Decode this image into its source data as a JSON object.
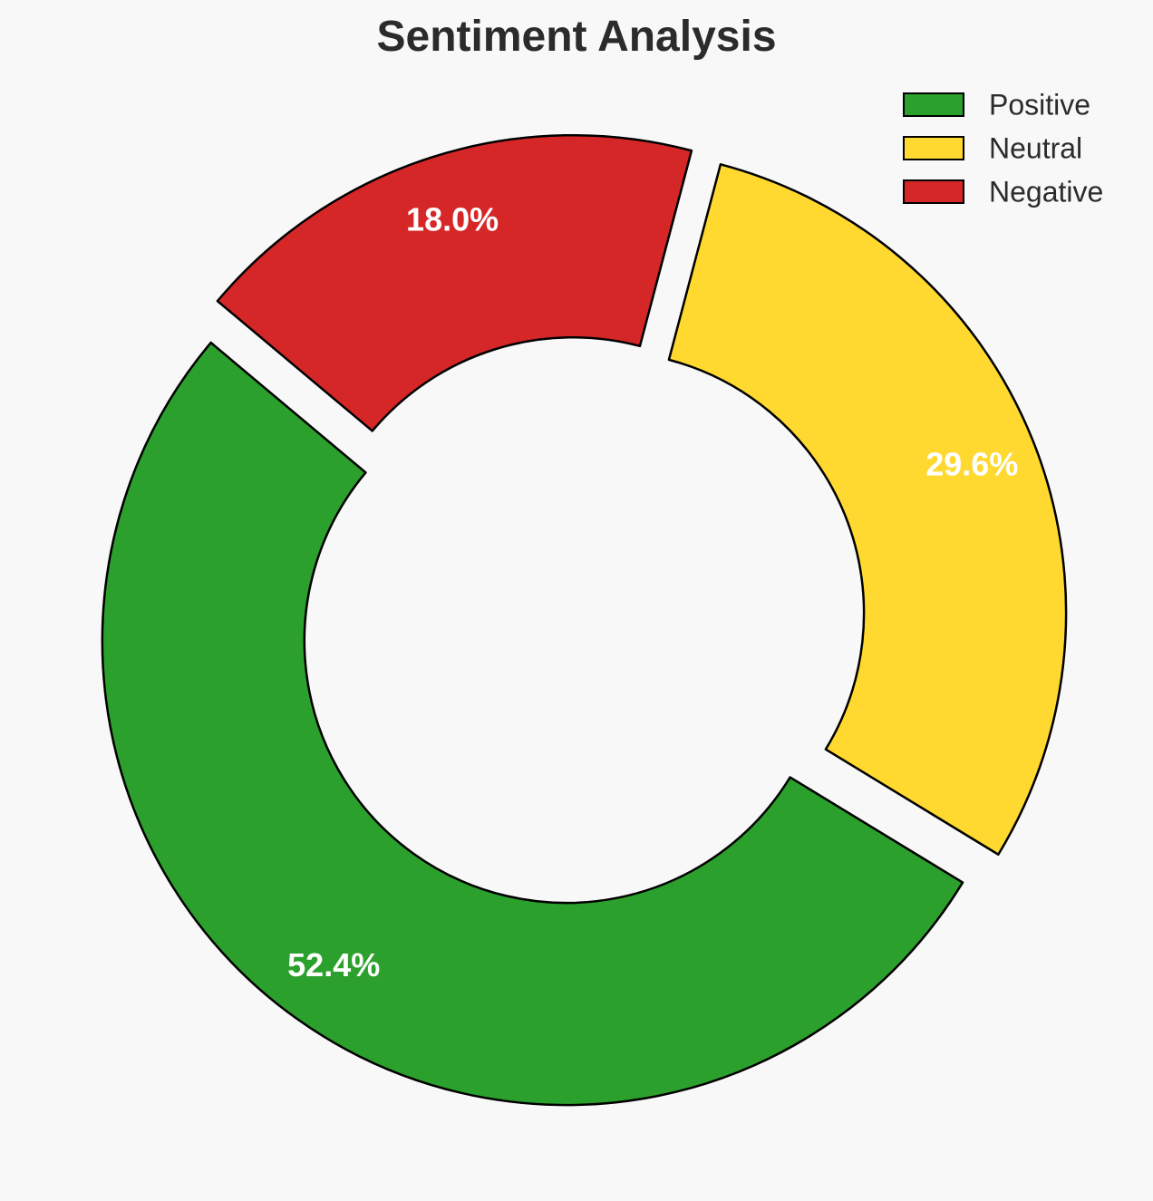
{
  "chart_data": {
    "type": "pie",
    "variant": "donut",
    "title": "Sentiment Analysis",
    "categories": [
      "Positive",
      "Neutral",
      "Negative"
    ],
    "values": [
      52.4,
      29.6,
      18.0
    ],
    "labels": [
      "52.4%",
      "29.6%",
      "18.0%"
    ],
    "colors": [
      "#2ca02c",
      "#ffd92f",
      "#d62728"
    ],
    "edge_color": "#000000",
    "label_color": "#ffffff",
    "legend_position": "top-right",
    "start_angle_deg": 140,
    "direction": "counterclockwise"
  }
}
